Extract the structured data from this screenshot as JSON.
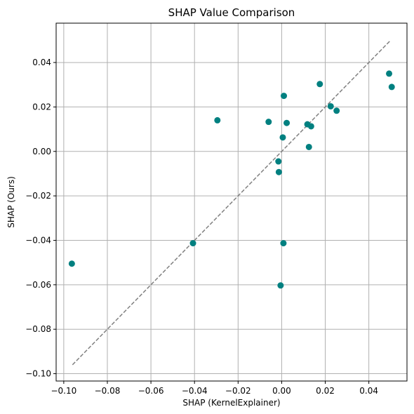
{
  "chart_data": {
    "type": "scatter",
    "title": "SHAP Value Comparison",
    "xlabel": "SHAP (KernelExplainer)",
    "ylabel": "SHAP (Ours)",
    "xlim": [
      -0.1035,
      0.0575
    ],
    "ylim": [
      -0.1033,
      0.0577
    ],
    "xticks": [
      -0.1,
      -0.08,
      -0.06,
      -0.04,
      -0.02,
      0.0,
      0.02,
      0.04
    ],
    "yticks": [
      -0.1,
      -0.08,
      -0.06,
      -0.04,
      -0.02,
      0.0,
      0.02,
      0.04
    ],
    "xtick_labels": [
      "−0.10",
      "−0.08",
      "−0.06",
      "−0.04",
      "−0.02",
      "0.00",
      "0.02",
      "0.04"
    ],
    "ytick_labels": [
      "−0.10",
      "−0.08",
      "−0.06",
      "−0.04",
      "−0.02",
      "0.00",
      "0.02",
      "0.04"
    ],
    "grid": true,
    "marker_color": "#008080",
    "reference_line": {
      "from": [
        -0.096,
        -0.096
      ],
      "to": [
        0.05,
        0.05
      ],
      "style": "dashed",
      "color": "#808080"
    },
    "points": [
      [
        -0.0963,
        -0.0505
      ],
      [
        -0.0407,
        -0.0413
      ],
      [
        -0.0295,
        0.014
      ],
      [
        -0.006,
        0.0133
      ],
      [
        -0.0015,
        -0.0045
      ],
      [
        -0.0013,
        -0.0093
      ],
      [
        -0.0005,
        -0.0603
      ],
      [
        0.0005,
        0.0063
      ],
      [
        0.001,
        0.025
      ],
      [
        0.0008,
        -0.0413
      ],
      [
        0.0023,
        0.0128
      ],
      [
        0.0118,
        0.0122
      ],
      [
        0.0125,
        0.002
      ],
      [
        0.0135,
        0.0113
      ],
      [
        0.0175,
        0.0303
      ],
      [
        0.0225,
        0.0203
      ],
      [
        0.0252,
        0.0183
      ],
      [
        0.0493,
        0.035
      ],
      [
        0.0505,
        0.029
      ]
    ]
  }
}
